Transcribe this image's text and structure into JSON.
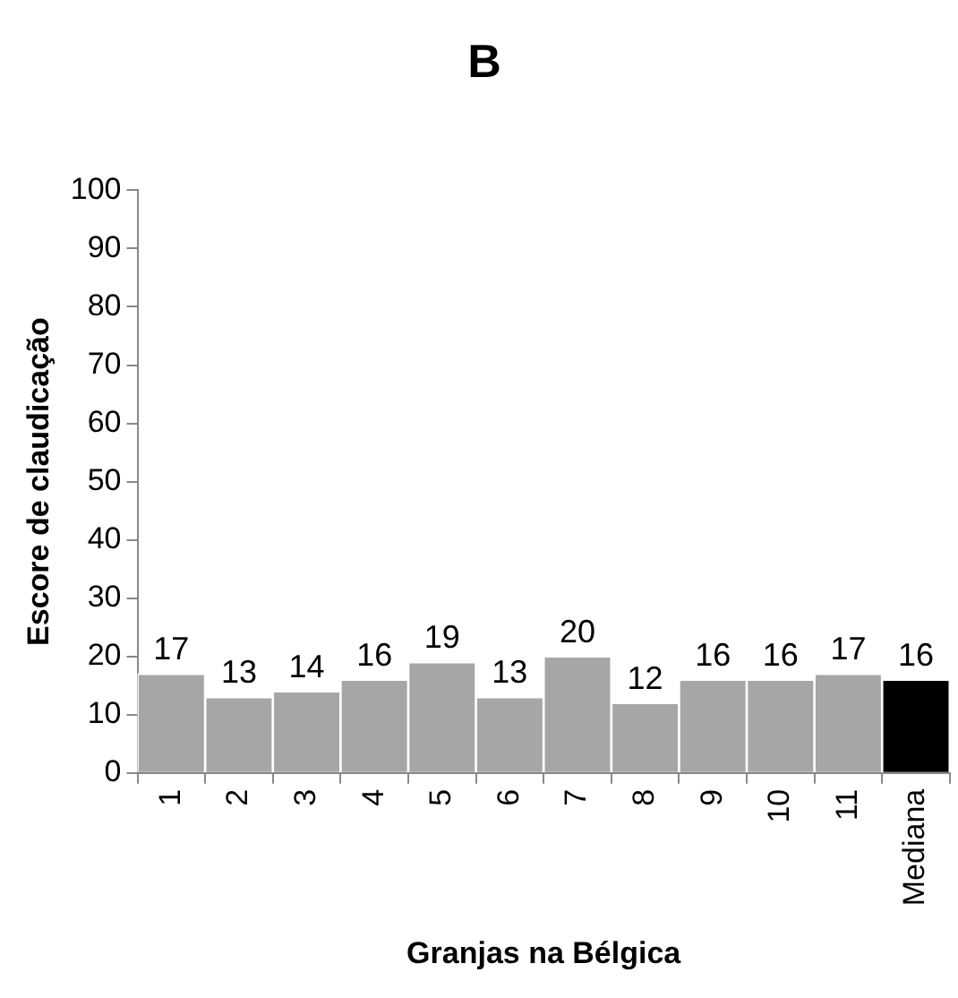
{
  "chart_data": {
    "type": "bar",
    "title": "B",
    "xlabel": "Granjas na Bélgica",
    "ylabel": "Escore de claudicação",
    "categories": [
      "1",
      "2",
      "3",
      "4",
      "5",
      "6",
      "7",
      "8",
      "9",
      "10",
      "11",
      "Mediana"
    ],
    "values": [
      17,
      13,
      14,
      16,
      19,
      13,
      20,
      12,
      16,
      16,
      17,
      16
    ],
    "colors": [
      "#a6a6a6",
      "#a6a6a6",
      "#a6a6a6",
      "#a6a6a6",
      "#a6a6a6",
      "#a6a6a6",
      "#a6a6a6",
      "#a6a6a6",
      "#a6a6a6",
      "#a6a6a6",
      "#a6a6a6",
      "#000000"
    ],
    "ylim": [
      0,
      100
    ],
    "yticks": [
      0,
      10,
      20,
      30,
      40,
      50,
      60,
      70,
      80,
      90,
      100
    ],
    "grid": false,
    "legend": false,
    "data_labels": true
  }
}
